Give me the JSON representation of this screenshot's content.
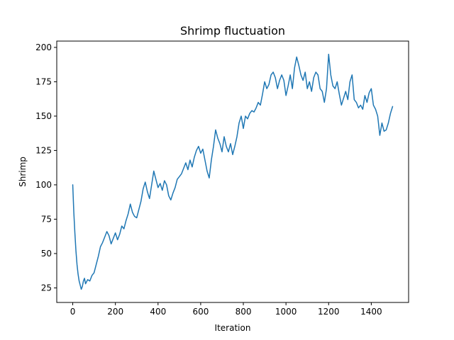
{
  "chart_data": {
    "type": "line",
    "title": "Shrimp fluctuation",
    "xlabel": "Iteration",
    "ylabel": "Shrimp",
    "xlim": [
      -75,
      1575
    ],
    "ylim": [
      14.4,
      204.6
    ],
    "xticks": [
      0,
      200,
      400,
      600,
      800,
      1000,
      1200,
      1400
    ],
    "yticks": [
      25,
      50,
      75,
      100,
      125,
      150,
      175,
      200
    ],
    "grid": false,
    "color": "#1f77b4",
    "series": [
      {
        "x": [
          0,
          5,
          10,
          15,
          20,
          25,
          30,
          35,
          40,
          45,
          50,
          55,
          60,
          70,
          80,
          90,
          100,
          110,
          120,
          130,
          140,
          150,
          160,
          170,
          180,
          190,
          200,
          210,
          220,
          230,
          240,
          250,
          260,
          270,
          280,
          290,
          300,
          310,
          320,
          330,
          340,
          350,
          360,
          370,
          380,
          390,
          400,
          410,
          420,
          430,
          440,
          450,
          460,
          470,
          480,
          490,
          500,
          510,
          520,
          530,
          540,
          550,
          560,
          570,
          580,
          590,
          600,
          610,
          620,
          630,
          640,
          650,
          660,
          670,
          680,
          690,
          700,
          710,
          720,
          730,
          740,
          750,
          760,
          770,
          780,
          790,
          800,
          810,
          820,
          830,
          840,
          850,
          860,
          870,
          880,
          890,
          900,
          910,
          920,
          930,
          940,
          950,
          960,
          970,
          980,
          990,
          1000,
          1010,
          1020,
          1030,
          1040,
          1050,
          1060,
          1070,
          1080,
          1090,
          1100,
          1110,
          1120,
          1130,
          1140,
          1150,
          1160,
          1170,
          1180,
          1190,
          1200,
          1210,
          1220,
          1230,
          1240,
          1250,
          1260,
          1270,
          1280,
          1290,
          1300,
          1310,
          1320,
          1330,
          1340,
          1350,
          1360,
          1370,
          1380,
          1390,
          1400,
          1410,
          1420,
          1430,
          1440,
          1450,
          1460,
          1470,
          1480,
          1490,
          1500
        ],
        "y": [
          100,
          80,
          65,
          52,
          42,
          35,
          30,
          27,
          24,
          26,
          30,
          32,
          28,
          31,
          30,
          34,
          36,
          42,
          48,
          55,
          58,
          62,
          66,
          63,
          57,
          61,
          65,
          60,
          64,
          70,
          68,
          74,
          79,
          86,
          80,
          77,
          76,
          82,
          88,
          97,
          102,
          95,
          90,
          100,
          110,
          104,
          98,
          101,
          96,
          103,
          100,
          92,
          89,
          94,
          98,
          104,
          106,
          108,
          112,
          116,
          111,
          118,
          113,
          120,
          125,
          128,
          123,
          126,
          118,
          110,
          105,
          118,
          128,
          140,
          134,
          130,
          124,
          135,
          128,
          124,
          130,
          122,
          128,
          135,
          145,
          150,
          141,
          150,
          148,
          152,
          154,
          153,
          156,
          160,
          158,
          166,
          175,
          170,
          173,
          180,
          182,
          178,
          170,
          176,
          180,
          176,
          165,
          172,
          180,
          170,
          185,
          193,
          187,
          180,
          176,
          182,
          170,
          175,
          168,
          178,
          182,
          180,
          170,
          168,
          160,
          170,
          195,
          180,
          172,
          170,
          175,
          166,
          158,
          163,
          168,
          162,
          175,
          180,
          162,
          160,
          156,
          158,
          155,
          165,
          160,
          167,
          170,
          158,
          155,
          150,
          136,
          145,
          139,
          140,
          145,
          152,
          157
        ]
      }
    ]
  }
}
